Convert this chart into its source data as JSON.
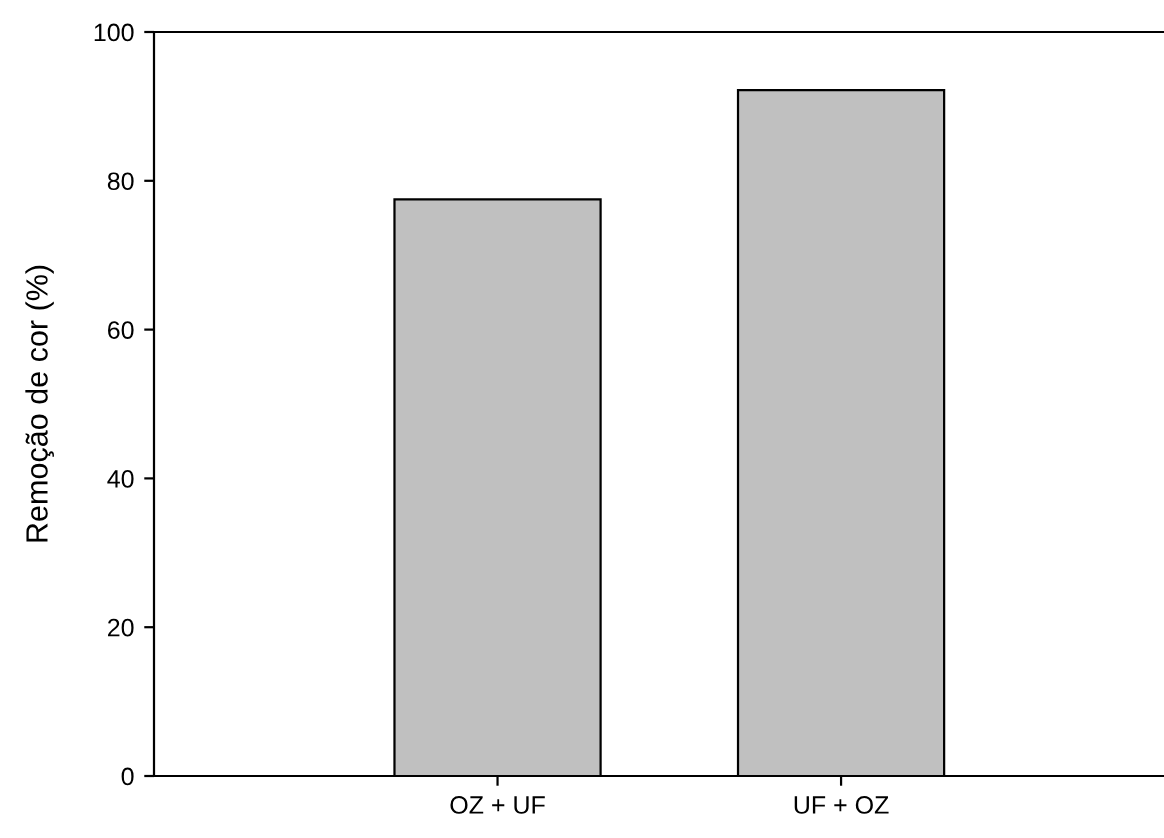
{
  "chart_data": {
    "type": "bar",
    "ylabel": "Remoção de cor (%)",
    "categories": [
      "OZ + UF",
      "UF + OZ"
    ],
    "values": [
      77.5,
      92.2
    ],
    "color": "#c0c0c0",
    "ylim": [
      0,
      100
    ],
    "yticks": [
      0,
      20,
      40,
      60,
      80,
      100
    ],
    "grid": false,
    "legend": false
  }
}
